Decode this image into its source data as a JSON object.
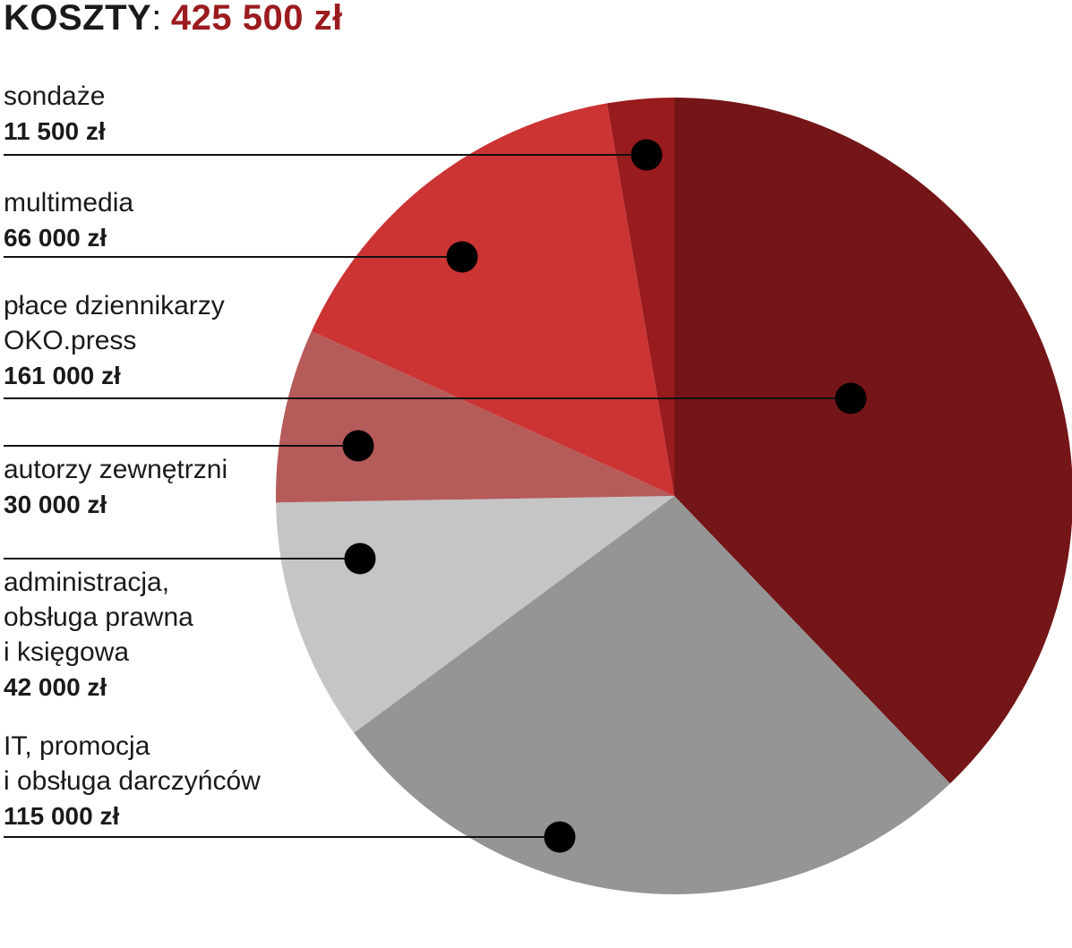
{
  "title": {
    "label": "KOSZTY",
    "separator": ":",
    "total": "425 500 zł"
  },
  "colors": {
    "title_total": "#9b1b1e",
    "leader_line": "#111111",
    "marker": "#000000"
  },
  "chart_data": {
    "type": "pie",
    "title": "KOSZTY: 425 500 zł",
    "unit": "zł",
    "total": 425500,
    "start": "12 o'clock",
    "direction": "clockwise",
    "slices": [
      {
        "key": "place",
        "label_lines": [
          "płace dziennikarzy",
          "OKO.press"
        ],
        "value": 161000,
        "value_label": "161 000 zł",
        "color": "#741517"
      },
      {
        "key": "it",
        "label_lines": [
          "IT, promocja",
          "i obsługa darczyńców"
        ],
        "value": 115000,
        "value_label": "115 000 zł",
        "color": "#959595"
      },
      {
        "key": "admin",
        "label_lines": [
          "administracja,",
          "obsługa prawna",
          "i księgowa"
        ],
        "value": 42000,
        "value_label": "42 000 zł",
        "color": "#c5c5c5"
      },
      {
        "key": "autorzy",
        "label_lines": [
          "autorzy zewnętrzni"
        ],
        "value": 30000,
        "value_label": "30 000 zł",
        "color": "#b55b5a"
      },
      {
        "key": "multimedia",
        "label_lines": [
          "multimedia"
        ],
        "value": 66000,
        "value_label": "66 000 zł",
        "color": "#cc3434"
      },
      {
        "key": "sondaze",
        "label_lines": [
          "sondaże"
        ],
        "value": 11500,
        "value_label": "11 500 zł",
        "color": "#981b1d"
      }
    ],
    "legend_order": [
      "sondaze",
      "multimedia",
      "place",
      "autorzy",
      "admin",
      "it"
    ]
  }
}
